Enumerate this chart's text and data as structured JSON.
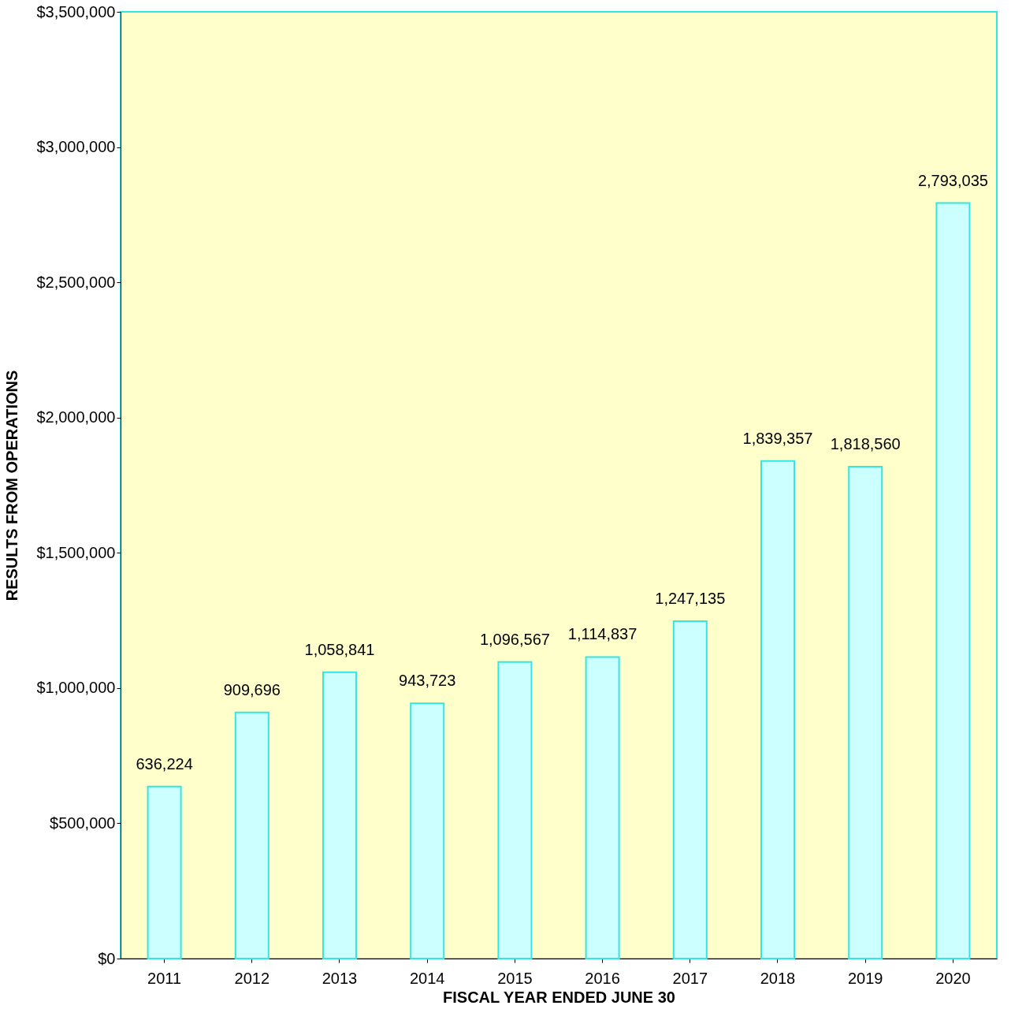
{
  "chart_data": {
    "type": "bar",
    "xlabel": "FISCAL YEAR ENDED JUNE 30",
    "ylabel": "RESULTS FROM OPERATIONS",
    "categories": [
      "2011",
      "2012",
      "2013",
      "2014",
      "2015",
      "2016",
      "2017",
      "2018",
      "2019",
      "2020"
    ],
    "values": [
      636224,
      909696,
      1058841,
      943723,
      1096567,
      1114837,
      1247135,
      1839357,
      1818560,
      2793035
    ],
    "value_labels": [
      "636,224",
      "909,696",
      "1,058,841",
      "943,723",
      "1,096,567",
      "1,114,837",
      "1,247,135",
      "1,839,357",
      "1,818,560",
      "2,793,035"
    ],
    "color": "#ccffff",
    "grid": false,
    "ylim": [
      0,
      3500000
    ],
    "yticks": [
      {
        "value": 0,
        "label": "$0"
      },
      {
        "value": 500000,
        "label": "$500,000"
      },
      {
        "value": 1000000,
        "label": "$1,000,000"
      },
      {
        "value": 1500000,
        "label": "$1,500,000"
      },
      {
        "value": 2000000,
        "label": "$2,000,000"
      },
      {
        "value": 2500000,
        "label": "$2,500,000"
      },
      {
        "value": 3000000,
        "label": "$3,000,000"
      },
      {
        "value": 3500000,
        "label": "$3,500,000"
      }
    ]
  }
}
